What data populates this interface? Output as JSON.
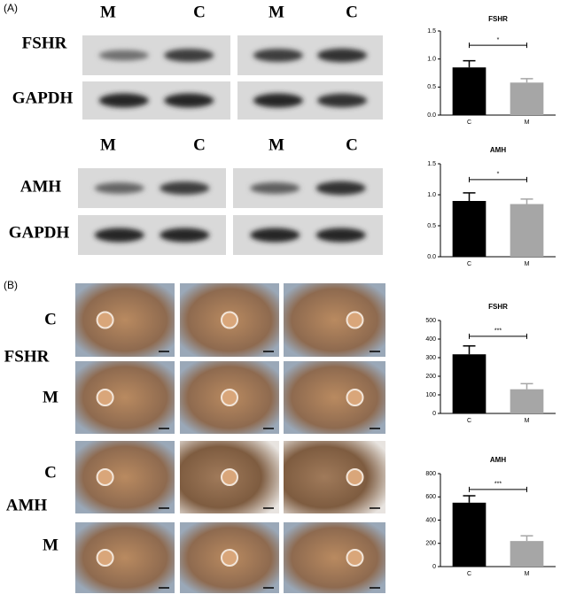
{
  "figure": {
    "panels": [
      "(A)",
      "(B)"
    ],
    "blot_headers": [
      [
        "M",
        "C",
        "M",
        "C"
      ],
      [
        "M",
        "C",
        "M",
        "C"
      ]
    ],
    "blot_rows": [
      "FSHR",
      "GAPDH",
      "AMH",
      "GAPDH"
    ],
    "ihc_labels": [
      "C",
      "FSHR",
      "M",
      "C",
      "AMH",
      "M"
    ]
  },
  "chart_data": [
    {
      "type": "bar",
      "title": "FSHR",
      "categories": [
        "C",
        "M"
      ],
      "values": [
        0.85,
        0.58
      ],
      "errors": [
        0.12,
        0.07
      ],
      "colors": [
        "#000000",
        "#a6a6a6"
      ],
      "ylim": [
        0,
        1.5
      ],
      "yticks": [
        {
          "value": 0,
          "label": "0.0"
        },
        0.5,
        {
          "value": 1,
          "label": "1.0"
        },
        1.5
      ],
      "annotation": "*"
    },
    {
      "type": "bar",
      "title": "AMH",
      "categories": [
        "C",
        "M"
      ],
      "values": [
        0.9,
        0.85
      ],
      "errors": [
        0.13,
        0.08
      ],
      "colors": [
        "#000000",
        "#a6a6a6"
      ],
      "ylim": [
        0,
        1.5
      ],
      "yticks": [
        {
          "value": 0,
          "label": "0.0"
        },
        0.5,
        {
          "value": 1,
          "label": "1.0"
        },
        1.5
      ],
      "annotation": "*"
    },
    {
      "type": "bar",
      "title": "FSHR",
      "categories": [
        "C",
        "M"
      ],
      "values": [
        318,
        130
      ],
      "errors": [
        45,
        30
      ],
      "colors": [
        "#000000",
        "#a6a6a6"
      ],
      "ylim": [
        0,
        500
      ],
      "yticks": [
        0,
        100,
        200,
        300,
        400,
        500
      ],
      "annotation": "***"
    },
    {
      "type": "bar",
      "title": "AMH",
      "categories": [
        "C",
        "M"
      ],
      "values": [
        550,
        220
      ],
      "errors": [
        60,
        45
      ],
      "colors": [
        "#000000",
        "#a6a6a6"
      ],
      "ylim": [
        0,
        800
      ],
      "yticks": [
        0,
        200,
        400,
        600,
        800
      ],
      "annotation": "***"
    }
  ]
}
